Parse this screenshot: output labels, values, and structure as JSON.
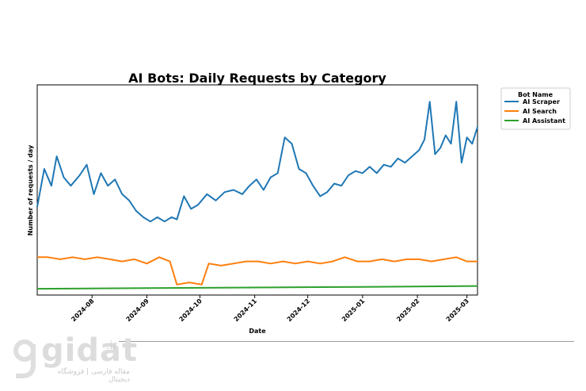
{
  "chart_data": {
    "type": "line",
    "title": "AI Bots: Daily Requests by Category",
    "xlabel": "Date",
    "ylabel": "Number of requests / day",
    "x_range": [
      "2024-07-01",
      "2025-03-07"
    ],
    "y_range": [
      0,
      100
    ],
    "y_tick_labels_shown": false,
    "grid": false,
    "legend": {
      "title": "Bot Name",
      "placement": "outside-top-right"
    },
    "x_ticks": [
      "2024-08",
      "2024-09",
      "2024-10",
      "2024-11",
      "2024-12",
      "2025-01",
      "2025-02",
      "2025-03"
    ],
    "series": [
      {
        "name": "AI Scraper",
        "color": "#1f77b4",
        "points": [
          [
            "2024-07-01",
            42
          ],
          [
            "2024-07-05",
            60
          ],
          [
            "2024-07-09",
            52
          ],
          [
            "2024-07-12",
            66
          ],
          [
            "2024-07-16",
            56
          ],
          [
            "2024-07-20",
            52
          ],
          [
            "2024-07-25",
            57
          ],
          [
            "2024-07-29",
            62
          ],
          [
            "2024-08-02",
            48
          ],
          [
            "2024-08-06",
            58
          ],
          [
            "2024-08-10",
            52
          ],
          [
            "2024-08-14",
            55
          ],
          [
            "2024-08-18",
            48
          ],
          [
            "2024-08-22",
            45
          ],
          [
            "2024-08-26",
            40
          ],
          [
            "2024-08-30",
            37
          ],
          [
            "2024-09-03",
            35
          ],
          [
            "2024-09-07",
            37
          ],
          [
            "2024-09-11",
            35
          ],
          [
            "2024-09-15",
            37
          ],
          [
            "2024-09-18",
            36
          ],
          [
            "2024-09-22",
            47
          ],
          [
            "2024-09-26",
            41
          ],
          [
            "2024-09-30",
            43
          ],
          [
            "2024-10-05",
            48
          ],
          [
            "2024-10-10",
            45
          ],
          [
            "2024-10-15",
            49
          ],
          [
            "2024-10-20",
            50
          ],
          [
            "2024-10-25",
            48
          ],
          [
            "2024-10-29",
            52
          ],
          [
            "2024-11-02",
            55
          ],
          [
            "2024-11-06",
            50
          ],
          [
            "2024-11-10",
            56
          ],
          [
            "2024-11-14",
            58
          ],
          [
            "2024-11-18",
            75
          ],
          [
            "2024-11-22",
            72
          ],
          [
            "2024-11-26",
            60
          ],
          [
            "2024-11-30",
            58
          ],
          [
            "2024-12-04",
            52
          ],
          [
            "2024-12-08",
            47
          ],
          [
            "2024-12-12",
            49
          ],
          [
            "2024-12-16",
            53
          ],
          [
            "2024-12-20",
            52
          ],
          [
            "2024-12-24",
            57
          ],
          [
            "2024-12-28",
            59
          ],
          [
            "2025-01-01",
            58
          ],
          [
            "2025-01-05",
            61
          ],
          [
            "2025-01-09",
            58
          ],
          [
            "2025-01-13",
            62
          ],
          [
            "2025-01-17",
            61
          ],
          [
            "2025-01-21",
            65
          ],
          [
            "2025-01-25",
            63
          ],
          [
            "2025-01-29",
            66
          ],
          [
            "2025-02-02",
            69
          ],
          [
            "2025-02-05",
            74
          ],
          [
            "2025-02-08",
            92
          ],
          [
            "2025-02-11",
            67
          ],
          [
            "2025-02-14",
            70
          ],
          [
            "2025-02-17",
            76
          ],
          [
            "2025-02-20",
            72
          ],
          [
            "2025-02-23",
            92
          ],
          [
            "2025-02-26",
            63
          ],
          [
            "2025-03-01",
            75
          ],
          [
            "2025-03-04",
            72
          ],
          [
            "2025-03-07",
            80
          ]
        ]
      },
      {
        "name": "AI Search",
        "color": "#ff7f0e",
        "points": [
          [
            "2024-07-01",
            18
          ],
          [
            "2024-07-07",
            18
          ],
          [
            "2024-07-14",
            17
          ],
          [
            "2024-07-21",
            18
          ],
          [
            "2024-07-28",
            17
          ],
          [
            "2024-08-04",
            18
          ],
          [
            "2024-08-11",
            17
          ],
          [
            "2024-08-18",
            16
          ],
          [
            "2024-08-25",
            17
          ],
          [
            "2024-09-01",
            15
          ],
          [
            "2024-09-08",
            18
          ],
          [
            "2024-09-14",
            16
          ],
          [
            "2024-09-18",
            5
          ],
          [
            "2024-09-25",
            6
          ],
          [
            "2024-10-02",
            5
          ],
          [
            "2024-10-06",
            15
          ],
          [
            "2024-10-13",
            14
          ],
          [
            "2024-10-20",
            15
          ],
          [
            "2024-10-27",
            16
          ],
          [
            "2024-11-03",
            16
          ],
          [
            "2024-11-10",
            15
          ],
          [
            "2024-11-17",
            16
          ],
          [
            "2024-11-24",
            15
          ],
          [
            "2024-12-01",
            16
          ],
          [
            "2024-12-08",
            15
          ],
          [
            "2024-12-15",
            16
          ],
          [
            "2024-12-22",
            18
          ],
          [
            "2024-12-29",
            16
          ],
          [
            "2025-01-05",
            16
          ],
          [
            "2025-01-12",
            17
          ],
          [
            "2025-01-19",
            16
          ],
          [
            "2025-01-26",
            17
          ],
          [
            "2025-02-02",
            17
          ],
          [
            "2025-02-09",
            16
          ],
          [
            "2025-02-16",
            17
          ],
          [
            "2025-02-23",
            18
          ],
          [
            "2025-03-01",
            16
          ],
          [
            "2025-03-07",
            16
          ]
        ]
      },
      {
        "name": "AI Assistant",
        "color": "#2ca02c",
        "points": [
          [
            "2024-07-01",
            3
          ],
          [
            "2024-09-01",
            3.3
          ],
          [
            "2024-11-01",
            3.6
          ],
          [
            "2025-01-01",
            3.9
          ],
          [
            "2025-03-07",
            4.3
          ]
        ]
      }
    ]
  },
  "watermark": {
    "brand": "gidat",
    "tld": ".ir",
    "tagline": "مقاله فارسی | فروشگاه دیجیتال"
  }
}
